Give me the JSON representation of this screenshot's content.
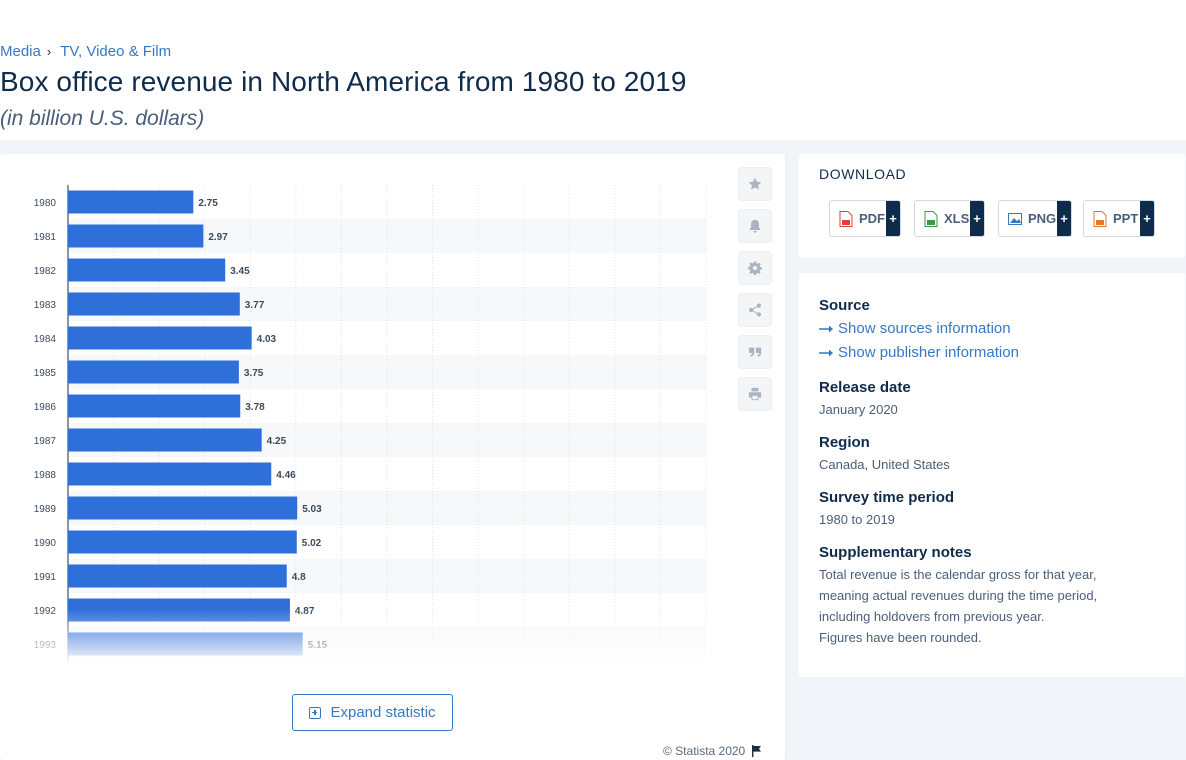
{
  "breadcrumb": {
    "items": [
      "Media",
      "TV, Video & Film"
    ],
    "separator": "›"
  },
  "title": "Box office revenue in North America from 1980 to 2019",
  "subtitle": "(in billion U.S. dollars)",
  "chart_data": {
    "type": "bar",
    "orientation": "horizontal",
    "categories": [
      "1980",
      "1981",
      "1982",
      "1983",
      "1984",
      "1985",
      "1986",
      "1987",
      "1988",
      "1989",
      "1990",
      "1991",
      "1992",
      "1993"
    ],
    "values": [
      2.75,
      2.97,
      3.45,
      3.77,
      4.03,
      3.75,
      3.78,
      4.25,
      4.46,
      5.03,
      5.02,
      4.8,
      4.87,
      5.15
    ],
    "xlim": [
      0,
      14
    ],
    "grid": true,
    "bar_color": "#2f6fd9",
    "note": "Chart truncated; remaining years hidden behind fade"
  },
  "tools": [
    "star-icon",
    "bell-icon",
    "gear-icon",
    "share-icon",
    "quote-icon",
    "print-icon"
  ],
  "expand_label": "Expand statistic",
  "copyright": "© Statista 2020",
  "download": {
    "title": "DOWNLOAD",
    "buttons": [
      {
        "label": "PDF",
        "color": "#e0403a"
      },
      {
        "label": "XLS",
        "color": "#3a9b45"
      },
      {
        "label": "PNG",
        "color": "#3778c2"
      },
      {
        "label": "PPT",
        "color": "#e07a2a"
      }
    ],
    "plus": "+"
  },
  "info": {
    "source_heading": "Source",
    "show_sources": "Show sources information",
    "show_publisher": "Show publisher information",
    "release_heading": "Release date",
    "release_value": "January 2020",
    "region_heading": "Region",
    "region_value": "Canada, United States",
    "survey_heading": "Survey time period",
    "survey_value": "1980 to 2019",
    "notes_heading": "Supplementary notes",
    "notes_value": "Total revenue is the calendar gross for that year, meaning actual revenues during the time period, including holdovers from previous year.",
    "notes_value2": "Figures have been rounded."
  }
}
